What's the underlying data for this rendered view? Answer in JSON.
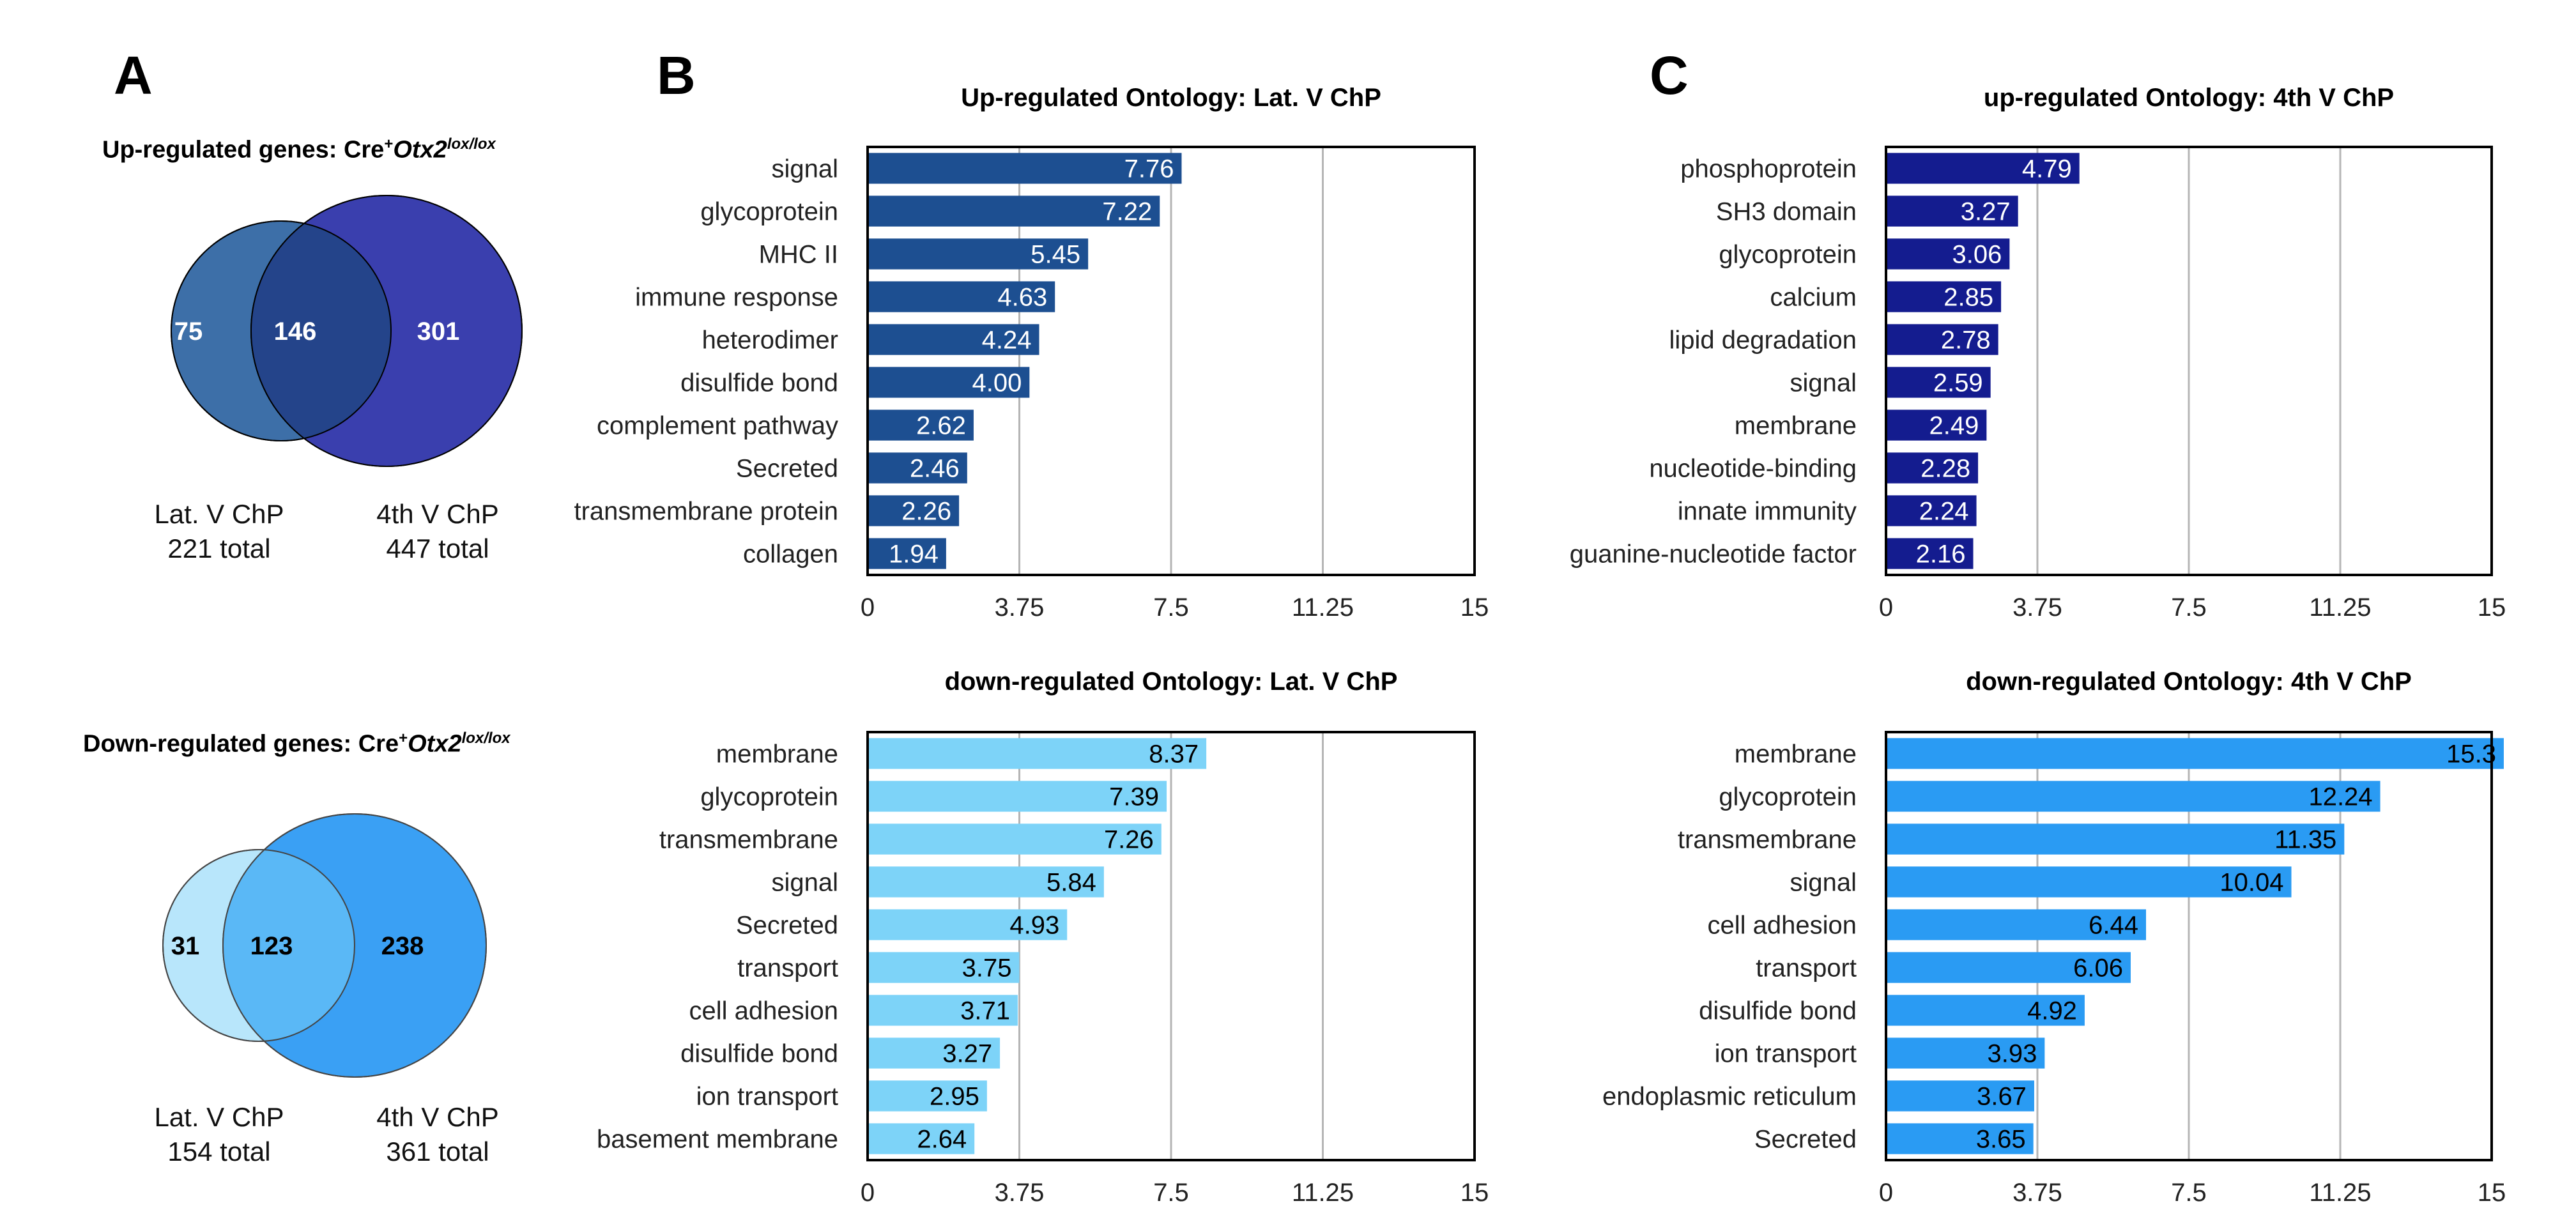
{
  "panels": {
    "a": "A",
    "b": "B",
    "c": "C"
  },
  "venn_up": {
    "title_prefix": "Up-regulated genes: Cre",
    "title_sup": "+",
    "title_gene": "Otx2",
    "title_gene_sup": "lox/lox",
    "left_only": "75",
    "overlap": "146",
    "right_only": "301",
    "left_label": "Lat. V ChP",
    "left_total": "221 total",
    "right_label": "4th V ChP",
    "right_total": "447 total",
    "left_color": "#3d6fa8",
    "right_color": "#3a3fae",
    "overlap_color": "#24448a"
  },
  "venn_down": {
    "title_prefix": "Down-regulated genes: Cre",
    "title_sup": "+",
    "title_gene": "Otx2",
    "title_gene_sup": "lox/lox",
    "left_only": "31",
    "overlap": "123",
    "right_only": "238",
    "left_label": "Lat. V ChP",
    "left_total": "154 total",
    "right_label": "4th V ChP",
    "right_total": "361 total",
    "left_color": "#b8e6fb",
    "right_color": "#3aa0f4",
    "overlap_color": "#5ab8f6"
  },
  "chart_data": [
    {
      "type": "bar",
      "orientation": "horizontal",
      "title": "Up-regulated Ontology: Lat. V ChP",
      "categories": [
        "signal",
        "glycoprotein",
        "MHC II",
        "immune response",
        "heterodimer",
        "disulfide bond",
        "complement pathway",
        "Secreted",
        "transmembrane protein",
        "collagen"
      ],
      "values": [
        7.76,
        7.22,
        5.45,
        4.63,
        4.24,
        4.0,
        2.62,
        2.46,
        2.26,
        1.94
      ],
      "value_labels": [
        "7.76",
        "7.22",
        "5.45",
        "4.63",
        "4.24",
        "4.00",
        "2.62",
        "2.46",
        "2.26",
        "1.94"
      ],
      "xlim": [
        0,
        15
      ],
      "xticks": [
        0,
        3.75,
        7.5,
        11.25,
        15
      ],
      "xtick_labels": [
        "0",
        "3.75",
        "7.5",
        "11.25",
        "15"
      ],
      "bar_color": "#1d4f91",
      "label_color": "#ffffff",
      "grid": true
    },
    {
      "type": "bar",
      "orientation": "horizontal",
      "title": "up-regulated Ontology: 4th V ChP",
      "categories": [
        "phosphoprotein",
        "SH3 domain",
        "glycoprotein",
        "calcium",
        "lipid degradation",
        "signal",
        "membrane",
        "nucleotide-binding",
        "innate immunity",
        "guanine-nucleotide factor"
      ],
      "values": [
        4.79,
        3.27,
        3.06,
        2.85,
        2.78,
        2.59,
        2.49,
        2.28,
        2.24,
        2.16
      ],
      "value_labels": [
        "4.79",
        "3.27",
        "3.06",
        "2.85",
        "2.78",
        "2.59",
        "2.49",
        "2.28",
        "2.24",
        "2.16"
      ],
      "xlim": [
        0,
        15
      ],
      "xticks": [
        0,
        3.75,
        7.5,
        11.25,
        15
      ],
      "xtick_labels": [
        "0",
        "3.75",
        "7.5",
        "11.25",
        "15"
      ],
      "bar_color": "#141c8f",
      "label_color": "#ffffff",
      "grid": true
    },
    {
      "type": "bar",
      "orientation": "horizontal",
      "title": "down-regulated Ontology: Lat. V ChP",
      "categories": [
        "membrane",
        "glycoprotein",
        "transmembrane",
        "signal",
        "Secreted",
        "transport",
        "cell adhesion",
        "disulfide bond",
        "ion transport",
        "basement membrane"
      ],
      "values": [
        8.37,
        7.39,
        7.26,
        5.84,
        4.93,
        3.75,
        3.71,
        3.27,
        2.95,
        2.64
      ],
      "value_labels": [
        "8.37",
        "7.39",
        "7.26",
        "5.84",
        "4.93",
        "3.75",
        "3.71",
        "3.27",
        "2.95",
        "2.64"
      ],
      "xlim": [
        0,
        15
      ],
      "xticks": [
        0,
        3.75,
        7.5,
        11.25,
        15
      ],
      "xtick_labels": [
        "0",
        "3.75",
        "7.5",
        "11.25",
        "15"
      ],
      "bar_color": "#7dd3f8",
      "label_color": "#000000",
      "grid": true
    },
    {
      "type": "bar",
      "orientation": "horizontal",
      "title": "down-regulated Ontology: 4th V ChP",
      "categories": [
        "membrane",
        "glycoprotein",
        "transmembrane",
        "signal",
        "cell adhesion",
        "transport",
        "disulfide bond",
        "ion transport",
        "endoplasmic reticulum",
        "Secreted"
      ],
      "values": [
        15.3,
        12.24,
        11.35,
        10.04,
        6.44,
        6.06,
        4.92,
        3.93,
        3.67,
        3.65
      ],
      "value_labels": [
        "15.3",
        "12.24",
        "11.35",
        "10.04",
        "6.44",
        "6.06",
        "4.92",
        "3.93",
        "3.67",
        "3.65"
      ],
      "xlim": [
        0,
        15
      ],
      "xticks": [
        0,
        3.75,
        7.5,
        11.25,
        15
      ],
      "xtick_labels": [
        "0",
        "3.75",
        "7.5",
        "11.25",
        "15"
      ],
      "bar_color": "#2a9bf3",
      "label_color": "#000000",
      "grid": true
    }
  ]
}
